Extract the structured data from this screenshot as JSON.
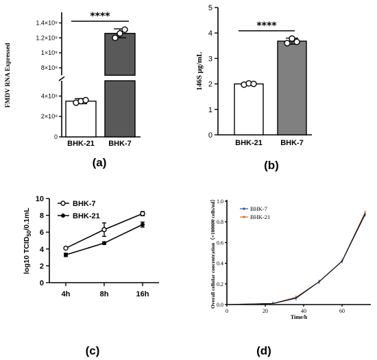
{
  "chart_data": [
    {
      "panel": "(a)",
      "type": "bar",
      "ylabel": "FMDV RNA Expressed",
      "categories": [
        "BHK-21",
        "BHK-7"
      ],
      "values": [
        350000000,
        1260000000
      ],
      "errors": [
        25000000,
        60000000
      ],
      "points": [
        [
          335000000,
          350000000,
          360000000
        ],
        [
          1200000000,
          1260000000,
          1310000000
        ]
      ],
      "bar_colors": [
        "#ffffff",
        "#595959"
      ],
      "y_axis_break": [
        550000000,
        700000000
      ],
      "yticks_lower": [
        "0",
        "2×10⁸",
        "4×10⁸"
      ],
      "yticks_upper": [
        "8×10⁸",
        "1×10⁹",
        "1.2×10⁹",
        "1.4×10⁹"
      ],
      "significance": "****"
    },
    {
      "panel": "(b)",
      "type": "bar",
      "ylabel": "146S μg/mL",
      "categories": [
        "BHK-21",
        "BHK-7"
      ],
      "values": [
        2.0,
        3.68
      ],
      "errors": [
        0.05,
        0.12
      ],
      "points": [
        [
          1.97,
          2.02,
          2.0
        ],
        [
          3.6,
          3.78,
          3.65
        ]
      ],
      "bar_colors": [
        "#ffffff",
        "#808080"
      ],
      "ylim": [
        0,
        5
      ],
      "yticks": [
        "0",
        "1",
        "2",
        "3",
        "4",
        "5"
      ],
      "significance": "****"
    },
    {
      "panel": "(c)",
      "type": "line",
      "ylabel": "log10 TCID50/0.1mL",
      "categories": [
        "4h",
        "8h",
        "16h"
      ],
      "ylim": [
        0,
        10
      ],
      "yticks": [
        "0",
        "2",
        "4",
        "6",
        "8",
        "10"
      ],
      "series": [
        {
          "name": "BHK-7",
          "marker": "open-circle",
          "values": [
            4.1,
            6.3,
            8.2
          ],
          "errors": [
            0.1,
            0.8,
            0.25
          ]
        },
        {
          "name": "BHK-21",
          "marker": "filled-circle",
          "values": [
            3.3,
            4.7,
            6.9
          ],
          "errors": [
            0.2,
            0.15,
            0.3
          ]
        }
      ]
    },
    {
      "panel": "(d)",
      "type": "line",
      "ylabel": "Overall cellular concentration（×100000 cells/ml）",
      "xlabel": "Time/h",
      "xlim": [
        0,
        75
      ],
      "ylim": [
        0,
        1.0
      ],
      "xticks": [
        "0",
        "20",
        "40",
        "60"
      ],
      "yticks": [
        "0.0",
        "0.2",
        "0.4",
        "0.6",
        "0.8",
        "1.0"
      ],
      "x": [
        0,
        24,
        36,
        48,
        60,
        72
      ],
      "series": [
        {
          "name": "BHK-7",
          "color": "#3b5f9e",
          "values": [
            0.0,
            0.01,
            0.06,
            0.22,
            0.42,
            0.87
          ]
        },
        {
          "name": "BHK-21",
          "color": "#e8702a",
          "values": [
            0.0,
            0.01,
            0.07,
            0.22,
            0.42,
            0.89
          ]
        }
      ]
    }
  ]
}
